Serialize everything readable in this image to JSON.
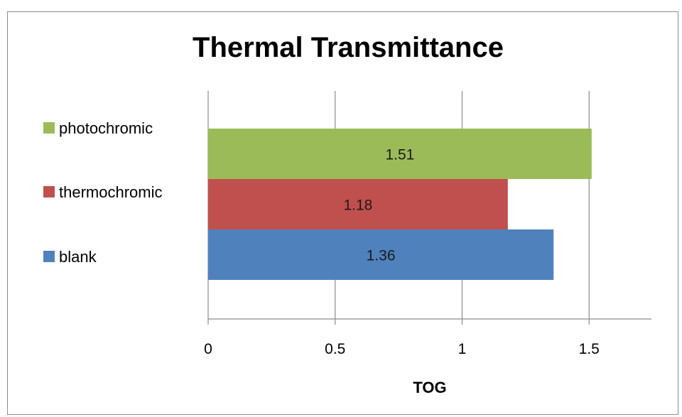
{
  "chart_data": {
    "type": "bar",
    "orientation": "horizontal",
    "title": "Thermal Transmittance",
    "xlabel": "TOG",
    "ylabel": "",
    "xlim": [
      0,
      1.75
    ],
    "x_ticks": [
      {
        "value": 0,
        "label": "0"
      },
      {
        "value": 0.5,
        "label": "0.5"
      },
      {
        "value": 1,
        "label": "1"
      },
      {
        "value": 1.5,
        "label": "1.5"
      }
    ],
    "grid": true,
    "legend_position": "left",
    "series": [
      {
        "name": "blank",
        "value": 1.36,
        "label": "1.36",
        "color": "#4f81bd"
      },
      {
        "name": "thermochromic",
        "value": 1.18,
        "label": "1.18",
        "color": "#c0504d"
      },
      {
        "name": "photochromic",
        "value": 1.51,
        "label": "1.51",
        "color": "#9bbb59"
      }
    ]
  }
}
